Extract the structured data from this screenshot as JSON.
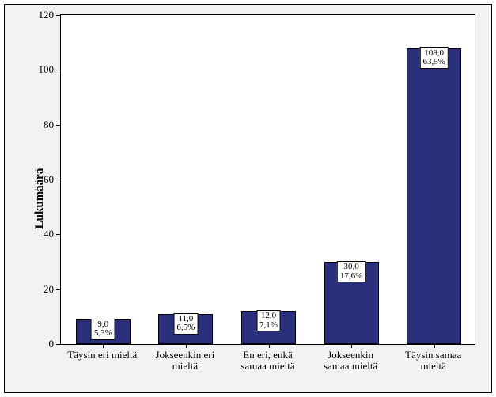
{
  "chart": {
    "type": "bar",
    "y_axis_label": "Lukumäärä",
    "y_label_fontsize": 15,
    "x_label_fontsize": 13,
    "tick_fontsize": 13,
    "data_label_fontsize": 11,
    "ylim": [
      0,
      120
    ],
    "yticks": [
      0,
      20,
      40,
      60,
      80,
      100,
      120
    ],
    "categories": [
      "Täysin eri mieltä",
      "Jokseenkin eri\nmieltä",
      "En eri, enkä\nsamaa mieltä",
      "Jokseenkin\nsamaa mieltä",
      "Täysin samaa\nmieltä"
    ],
    "values": [
      9.0,
      11.0,
      12.0,
      30.0,
      108.0
    ],
    "value_labels": [
      "9,0",
      "11,0",
      "12,0",
      "30,0",
      "108,0"
    ],
    "percent_labels": [
      "5,3%",
      "6,5%",
      "7,1%",
      "17,6%",
      "63,5%"
    ],
    "bar_color": "#2a2f7b",
    "bar_border_color": "#000000",
    "plot_background": "#ffffff",
    "outer_background": "#f2f2f2",
    "border_color": "#000000",
    "bar_width_ratio": 0.66
  }
}
